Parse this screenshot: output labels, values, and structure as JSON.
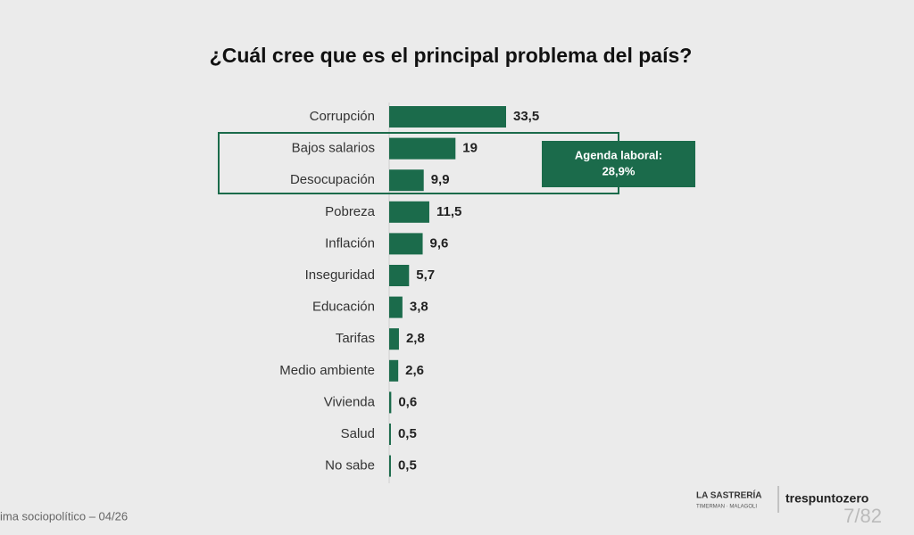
{
  "chart_data": {
    "type": "barh",
    "title": "¿Cuál cree que es el principal problema del país?",
    "categories": [
      "Corrupción",
      "Bajos salarios",
      "Desocupación",
      "Pobreza",
      "Inflación",
      "Inseguridad",
      "Educación",
      "Tarifas",
      "Medio ambiente",
      "Vivienda",
      "Salud",
      "No sabe"
    ],
    "values": [
      33.5,
      19,
      9.9,
      11.5,
      9.6,
      5.7,
      3.8,
      2.8,
      2.6,
      0.6,
      0.5,
      0.5
    ],
    "value_labels": [
      "33,5",
      "19",
      "9,9",
      "11,5",
      "9,6",
      "5,7",
      "3,8",
      "2,8",
      "2,6",
      "0,6",
      "0,5",
      "0,5"
    ],
    "color": "#1b6b4b",
    "annotation": [
      "Agenda laboral:",
      "28,9%"
    ]
  },
  "footer": {
    "source": "ima sociopolítico – 04/26",
    "logo_1": "LA SASTRERÍA",
    "logo_1_sub": "TIMERMAN · MALAGOLI",
    "logo_2": "trespuntozero",
    "page": "7/82"
  }
}
